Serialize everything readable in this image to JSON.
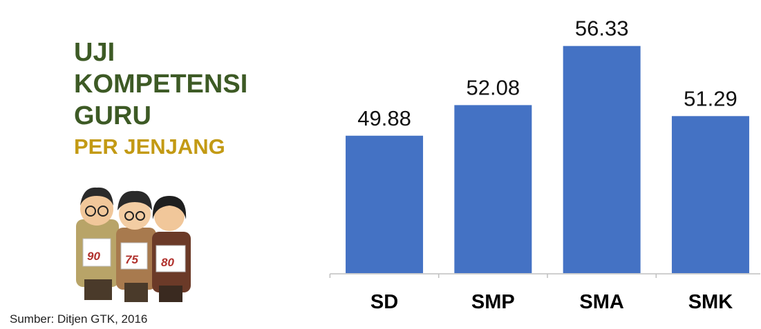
{
  "title_lines": [
    "UJI",
    "KOMPETENSI",
    "GURU"
  ],
  "subtitle": "PER JENJANG",
  "source": "Sumber: Ditjen GTK, 2016",
  "illustration": {
    "signs": [
      "90",
      "75",
      "80"
    ]
  },
  "chart_data": {
    "type": "bar",
    "categories": [
      "SD",
      "SMP",
      "SMA",
      "SMK"
    ],
    "values": [
      49.88,
      52.08,
      56.33,
      51.29
    ],
    "color": "#4472c4",
    "ylim": [
      40,
      58
    ]
  }
}
